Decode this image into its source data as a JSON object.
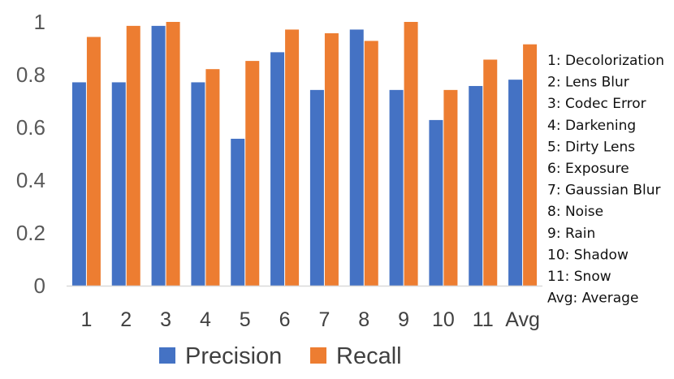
{
  "colors": {
    "precision": "#4472C4",
    "recall": "#ED7D31",
    "axis": "#D9D9D9"
  },
  "chart_data": {
    "type": "bar",
    "title": "",
    "xlabel": "",
    "ylabel": "",
    "ylim": [
      0,
      1
    ],
    "yticks": [
      "0",
      "0.2",
      "0.4",
      "0.6",
      "0.8",
      "1"
    ],
    "grid": false,
    "legend_position": "bottom",
    "categories": [
      "1",
      "2",
      "3",
      "4",
      "5",
      "6",
      "7",
      "8",
      "9",
      "10",
      "11",
      "Avg"
    ],
    "series": [
      {
        "name": "Precision",
        "color": "#4472C4",
        "values": [
          0.771,
          0.771,
          0.985,
          0.771,
          0.557,
          0.885,
          0.742,
          0.971,
          0.742,
          0.628,
          0.757,
          0.781
        ]
      },
      {
        "name": "Recall",
        "color": "#ED7D31",
        "values": [
          0.943,
          0.985,
          1.0,
          0.821,
          0.852,
          0.971,
          0.957,
          0.928,
          1.0,
          0.742,
          0.857,
          0.915
        ]
      }
    ],
    "annotations": [
      "1: Decolorization",
      "2: Lens Blur",
      "3: Codec Error",
      "4: Darkening",
      "5: Dirty Lens",
      "6: Exposure",
      "7: Gaussian Blur",
      "8: Noise",
      "9: Rain",
      "10: Shadow",
      "11: Snow",
      "Avg: Average"
    ]
  }
}
